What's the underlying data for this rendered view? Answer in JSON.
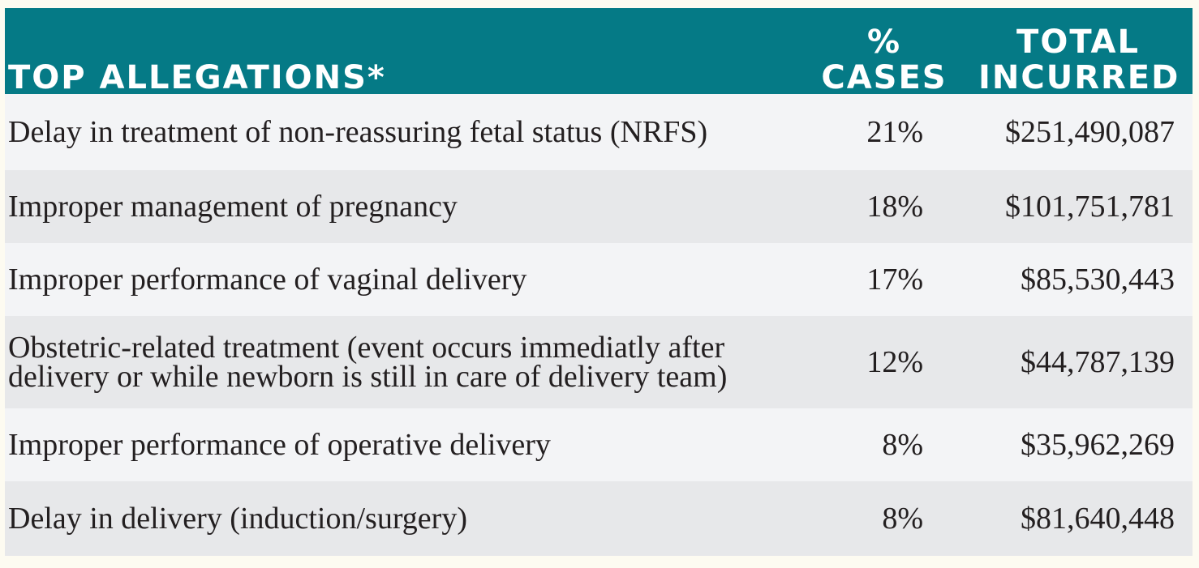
{
  "header": {
    "allegations_label": "TOP ALLEGATIONS*",
    "cases_label_line1": "%",
    "cases_label_line2": "CASES",
    "incurred_label_line1": "TOTAL",
    "incurred_label_line2": "INCURRED"
  },
  "rows": [
    {
      "allegation": "Delay in treatment of non-reassuring fetal status (NRFS)",
      "cases": "21%",
      "incurred": "$251,490,087"
    },
    {
      "allegation": "Improper management of pregnancy",
      "cases": "18%",
      "incurred": "$101,751,781"
    },
    {
      "allegation": "Improper performance of vaginal delivery",
      "cases": "17%",
      "incurred": "$85,530,443"
    },
    {
      "allegation": "Obstetric-related treatment (event occurs immediatly after delivery or while newborn is still in care of delivery team)",
      "cases": "12%",
      "incurred": "$44,787,139"
    },
    {
      "allegation": "Improper performance of operative delivery",
      "cases": "8%",
      "incurred": "$35,962,269"
    },
    {
      "allegation": "Delay in delivery (induction/surgery)",
      "cases": "8%",
      "incurred": "$81,640,448"
    }
  ],
  "colors": {
    "header_background": "#057a86",
    "header_text": "#ffffff",
    "row_light": "#f3f4f6",
    "row_dark": "#e7e8ea",
    "body_text": "#231f20"
  }
}
